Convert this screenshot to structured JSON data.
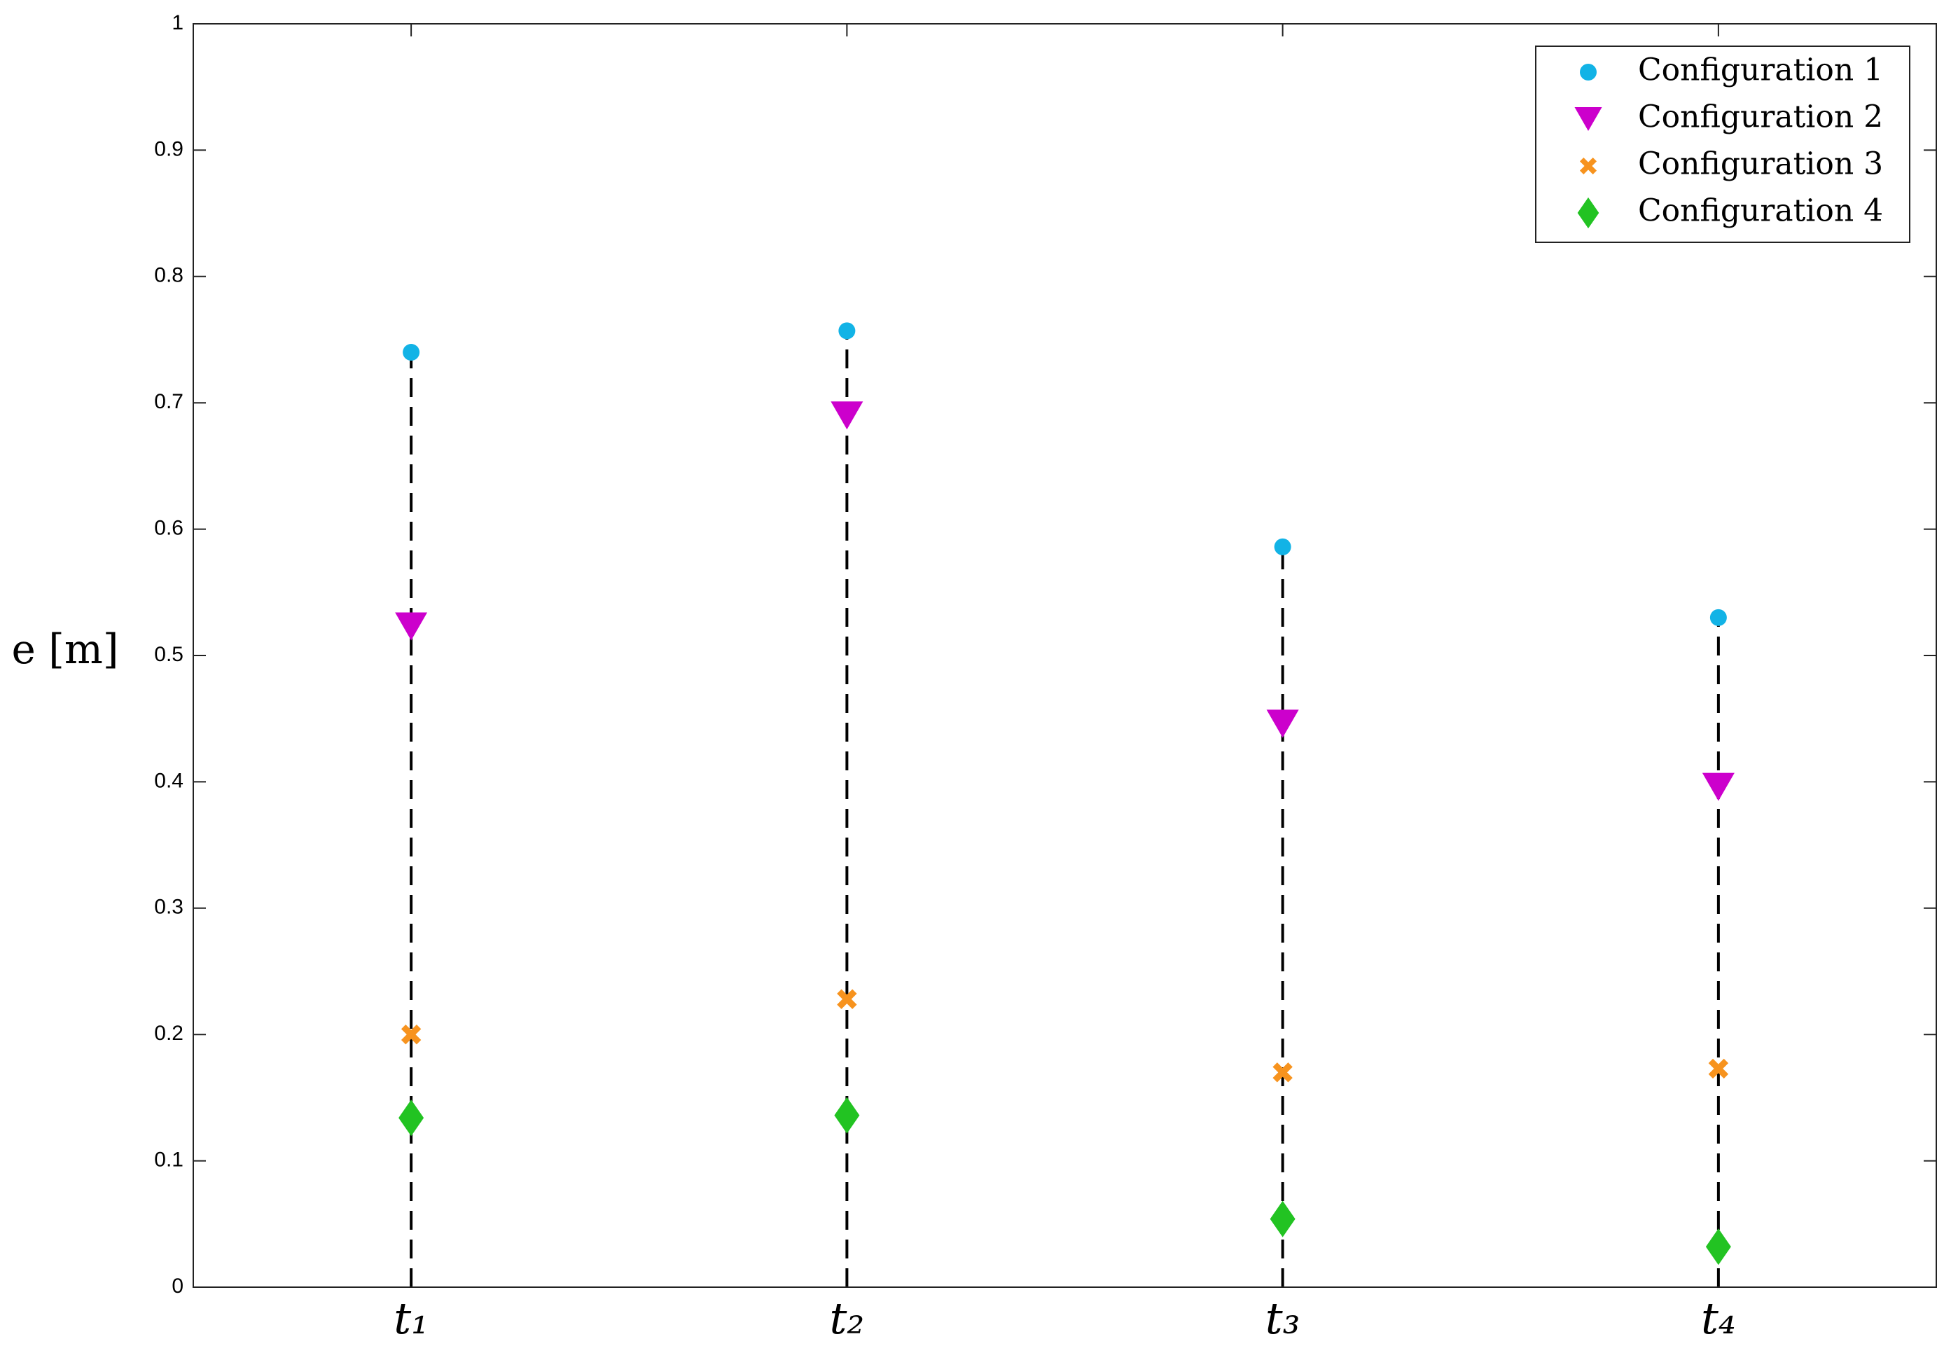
{
  "chart_data": {
    "type": "scatter",
    "categories": [
      "t₁",
      "t₂",
      "t₃",
      "t₄"
    ],
    "ylabel": "e [m]",
    "ylim": [
      0,
      1
    ],
    "yticks": [
      0,
      0.1,
      0.2,
      0.3,
      0.4,
      0.5,
      0.6,
      0.7,
      0.8,
      0.9,
      1
    ],
    "stems": true,
    "legend": "upper right",
    "series": [
      {
        "name": "Configuration 1",
        "color": "#12b3e6",
        "marker": "circle",
        "values": [
          0.74,
          0.757,
          0.586,
          0.53
        ]
      },
      {
        "name": "Configuration 2",
        "color": "#cc00cc",
        "marker": "triangle-down",
        "values": [
          0.523,
          0.69,
          0.446,
          0.396
        ]
      },
      {
        "name": "Configuration 3",
        "color": "#f7931e",
        "marker": "x",
        "values": [
          0.2,
          0.228,
          0.17,
          0.173
        ]
      },
      {
        "name": "Configuration 4",
        "color": "#22c322",
        "marker": "diamond",
        "values": [
          0.134,
          0.136,
          0.054,
          0.032
        ]
      }
    ]
  }
}
